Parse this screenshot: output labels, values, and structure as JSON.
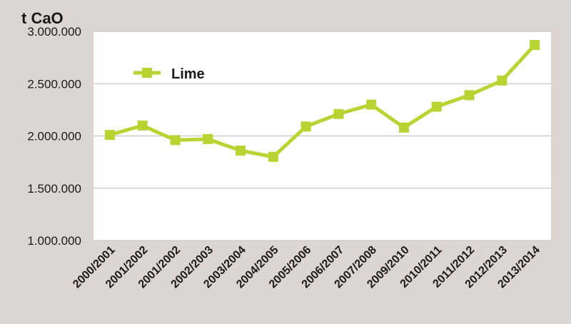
{
  "chart_data": {
    "type": "line",
    "y_unit_label": "t CaO",
    "categories": [
      "2000/2001",
      "2001/2002",
      "2001/2002",
      "2002/2003",
      "2003/2004",
      "2004/2005",
      "2005/2006",
      "2006/2007",
      "2007/2008",
      "2009/2010",
      "2010/2011",
      "2011/2012",
      "2012/2013",
      "2013/2014"
    ],
    "series": [
      {
        "name": "Lime",
        "color": "#b8d432",
        "values": [
          2010000,
          2100000,
          1960000,
          1970000,
          1860000,
          1800000,
          2090000,
          2210000,
          2300000,
          2080000,
          2280000,
          2390000,
          2530000,
          2870000
        ]
      }
    ],
    "ylim": [
      1000000,
      3000000
    ],
    "yticks": [
      1000000,
      1500000,
      2000000,
      2500000,
      3000000
    ],
    "ytick_labels": [
      "1.000.000",
      "1.500.000",
      "2.000.000",
      "2.500.000",
      "3.000.000"
    ],
    "legend_position": "top-left",
    "grid": true,
    "plot_background": "#ffffff",
    "page_background": "#dcd6d2"
  }
}
